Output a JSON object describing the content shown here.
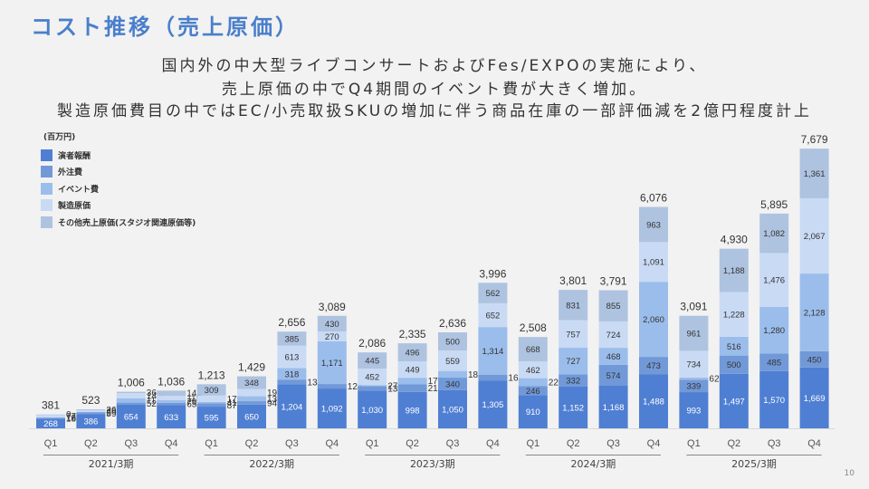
{
  "title": "コスト推移（売上原価）",
  "subtitle_lines": [
    "国内外の中大型ライブコンサートおよびFes/EXPOの実施により、",
    "売上原価の中でQ4期間のイベント費が大きく増加。",
    "製造原価費目の中ではEC/小売取扱SKUの増加に伴う商品在庫の一部評価減を2億円程度計上"
  ],
  "page_number": "10",
  "chart_data": {
    "type": "bar",
    "stacked": true,
    "unit_label": "(百万円)",
    "title": "",
    "xlabel": "",
    "ylabel": "",
    "ylim": [
      0,
      8000
    ],
    "grid": false,
    "legend_position": "top-left",
    "categories": [
      "Q1",
      "Q2",
      "Q3",
      "Q4",
      "Q1",
      "Q2",
      "Q3",
      "Q4",
      "Q1",
      "Q2",
      "Q3",
      "Q4",
      "Q1",
      "Q2",
      "Q3",
      "Q4",
      "Q1",
      "Q2",
      "Q3",
      "Q4"
    ],
    "fiscal_years": [
      "2021/3期",
      "2022/3期",
      "2023/3期",
      "2024/3期",
      "2025/3期"
    ],
    "series": [
      {
        "name": "演者報酬",
        "color": "#4f7fd3",
        "label_color": "#ffffff",
        "values": [
          268,
          386,
          654,
          633,
          595,
          650,
          1204,
          1092,
          1030,
          998,
          1050,
          1305,
          910,
          1152,
          1168,
          1488,
          993,
          1497,
          1570,
          1669
        ]
      },
      {
        "name": "外注費",
        "color": "#7199d8",
        "label_color": "#333333",
        "values": [
          18,
          59,
          52,
          65,
          87,
          94,
          134,
          124,
          130,
          215,
          340,
          161,
          246,
          332,
          574,
          473,
          339,
          500,
          485,
          450
        ]
      },
      {
        "name": "イベント費",
        "color": "#9bbdeb",
        "label_color": "#333333",
        "values": [
          16,
          2,
          117,
          79,
          41,
          136,
          318,
          1171,
          27,
          175,
          185,
          1314,
          220,
          727,
          468,
          2060,
          62,
          516,
          1280,
          2128
        ]
      },
      {
        "name": "製造原価",
        "color": "#c9daf4",
        "label_color": "#333333",
        "values": [
          77,
          48,
          145,
          115,
          178,
          199,
          613,
          270,
          452,
          449,
          559,
          652,
          462,
          757,
          724,
          1091,
          734,
          1228,
          1476,
          2067
        ]
      },
      {
        "name": "その他売上原価(スタジオ関連原価等)",
        "color": "#aec3e0",
        "label_color": "#333333",
        "values": [
          0,
          26,
          36,
          143,
          309,
          348,
          385,
          430,
          445,
          496,
          500,
          562,
          668,
          831,
          855,
          963,
          961,
          1188,
          1082,
          1361
        ]
      }
    ],
    "totals": [
      381,
      523,
      1006,
      1036,
      1213,
      1429,
      2656,
      3089,
      2086,
      2335,
      2636,
      3996,
      2508,
      3801,
      3791,
      6076,
      3091,
      4930,
      5895,
      7679
    ]
  }
}
